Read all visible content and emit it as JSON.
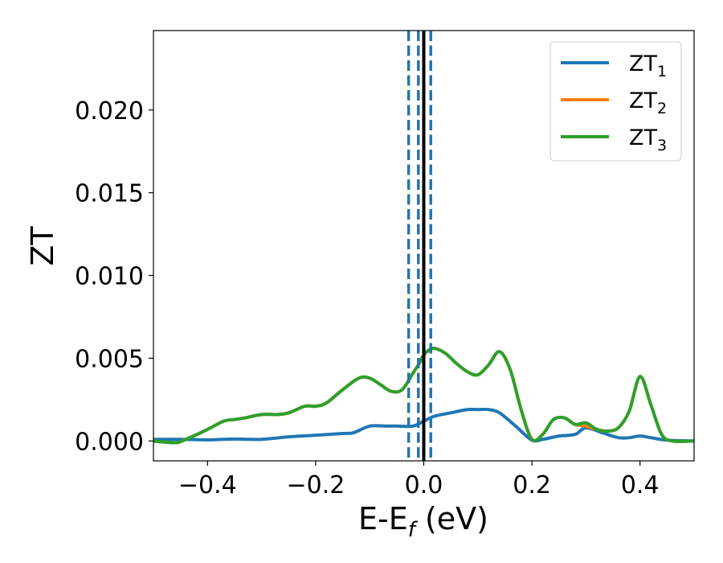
{
  "chart_data": {
    "type": "line",
    "title": "",
    "xlabel": {
      "main": "E-E",
      "sub": "f",
      "suffix": " (eV)"
    },
    "ylabel": "ZT",
    "xlim": [
      -0.5,
      0.5
    ],
    "ylim": [
      -0.0012,
      0.0248
    ],
    "grid": false,
    "legend_position": "top-right",
    "x_ticks": [
      -0.4,
      -0.2,
      0.0,
      0.2,
      0.4
    ],
    "x_tick_labels": [
      "−0.4",
      "−0.2",
      "0.0",
      "0.2",
      "0.4"
    ],
    "y_ticks": [
      0.0,
      0.005,
      0.01,
      0.015,
      0.02
    ],
    "y_tick_labels": [
      "0.000",
      "0.005",
      "0.010",
      "0.015",
      "0.020"
    ],
    "series": [
      {
        "name": "ZT",
        "name_sub": "1",
        "color": "#1f77b4",
        "x": [
          -0.5,
          -0.45,
          -0.4,
          -0.35,
          -0.3,
          -0.25,
          -0.2,
          -0.15,
          -0.13,
          -0.1,
          -0.07,
          -0.05,
          -0.02,
          0.0,
          0.02,
          0.05,
          0.08,
          0.1,
          0.12,
          0.14,
          0.17,
          0.2,
          0.22,
          0.25,
          0.28,
          0.3,
          0.33,
          0.36,
          0.38,
          0.4,
          0.42,
          0.45,
          0.5
        ],
        "values": [
          0.0001,
          0.0001,
          7e-05,
          0.00012,
          0.0001,
          0.00025,
          0.00035,
          0.00045,
          0.0005,
          0.0009,
          0.0009,
          0.0009,
          0.0009,
          0.0012,
          0.0015,
          0.0017,
          0.0019,
          0.0019,
          0.0019,
          0.0017,
          0.0009,
          5e-05,
          0.0001,
          0.0003,
          0.0004,
          0.0008,
          0.0005,
          0.0002,
          0.0002,
          0.0003,
          0.0002,
          5e-05,
          0.0
        ]
      },
      {
        "name": "ZT",
        "name_sub": "2",
        "color": "#ff7f0e",
        "x": [
          -0.5,
          -0.46,
          -0.44,
          -0.4,
          -0.37,
          -0.35,
          -0.33,
          -0.3,
          -0.27,
          -0.25,
          -0.22,
          -0.2,
          -0.18,
          -0.15,
          -0.12,
          -0.1,
          -0.08,
          -0.06,
          -0.04,
          -0.02,
          -0.01,
          0.0,
          0.01,
          0.02,
          0.04,
          0.06,
          0.08,
          0.1,
          0.12,
          0.14,
          0.16,
          0.18,
          0.2,
          0.22,
          0.24,
          0.26,
          0.28,
          0.3,
          0.32,
          0.34,
          0.36,
          0.38,
          0.4,
          0.42,
          0.44,
          0.46,
          0.5
        ],
        "values": [
          0.0,
          -0.0001,
          0.0001,
          0.0007,
          0.0012,
          0.0013,
          0.0014,
          0.0016,
          0.0016,
          0.0017,
          0.0021,
          0.0021,
          0.0023,
          0.0031,
          0.0038,
          0.0038,
          0.0034,
          0.003,
          0.0031,
          0.0041,
          0.0046,
          0.0052,
          0.0055,
          0.0056,
          0.0053,
          0.0047,
          0.0042,
          0.004,
          0.0046,
          0.0054,
          0.0043,
          0.0019,
          0.0001,
          0.0004,
          0.0013,
          0.0014,
          0.001,
          0.0009,
          0.0007,
          0.0006,
          0.0008,
          0.0018,
          0.0039,
          0.0022,
          0.0004,
          0.0,
          0.0
        ]
      },
      {
        "name": "ZT",
        "name_sub": "3",
        "color": "#2ca02c",
        "x": [
          -0.5,
          -0.46,
          -0.44,
          -0.4,
          -0.37,
          -0.35,
          -0.33,
          -0.3,
          -0.27,
          -0.25,
          -0.22,
          -0.2,
          -0.18,
          -0.15,
          -0.12,
          -0.1,
          -0.08,
          -0.06,
          -0.04,
          -0.02,
          -0.01,
          0.0,
          0.01,
          0.02,
          0.04,
          0.06,
          0.08,
          0.1,
          0.12,
          0.14,
          0.16,
          0.18,
          0.2,
          0.22,
          0.24,
          0.26,
          0.28,
          0.3,
          0.32,
          0.34,
          0.36,
          0.38,
          0.4,
          0.42,
          0.44,
          0.46,
          0.5
        ],
        "values": [
          0.0,
          -0.0001,
          0.0001,
          0.0007,
          0.0012,
          0.0013,
          0.0014,
          0.0016,
          0.0016,
          0.0017,
          0.0021,
          0.0021,
          0.0023,
          0.0031,
          0.0038,
          0.0038,
          0.0034,
          0.003,
          0.0031,
          0.0041,
          0.0046,
          0.0052,
          0.0055,
          0.0056,
          0.0053,
          0.0047,
          0.0042,
          0.004,
          0.0046,
          0.0054,
          0.0043,
          0.0019,
          0.0001,
          0.0004,
          0.0013,
          0.0014,
          0.001,
          0.0011,
          0.0007,
          0.0006,
          0.0008,
          0.0018,
          0.0039,
          0.0022,
          0.0004,
          0.0,
          0.0
        ]
      }
    ],
    "vertical_lines": [
      {
        "x": -0.028,
        "style": "dashed",
        "color": "#1f77b4"
      },
      {
        "x": -0.01,
        "style": "dashed",
        "color": "#1f77b4"
      },
      {
        "x": 0.013,
        "style": "dashed",
        "color": "#1f77b4"
      },
      {
        "x": 0.0,
        "style": "solid",
        "color": "#000000"
      }
    ]
  }
}
